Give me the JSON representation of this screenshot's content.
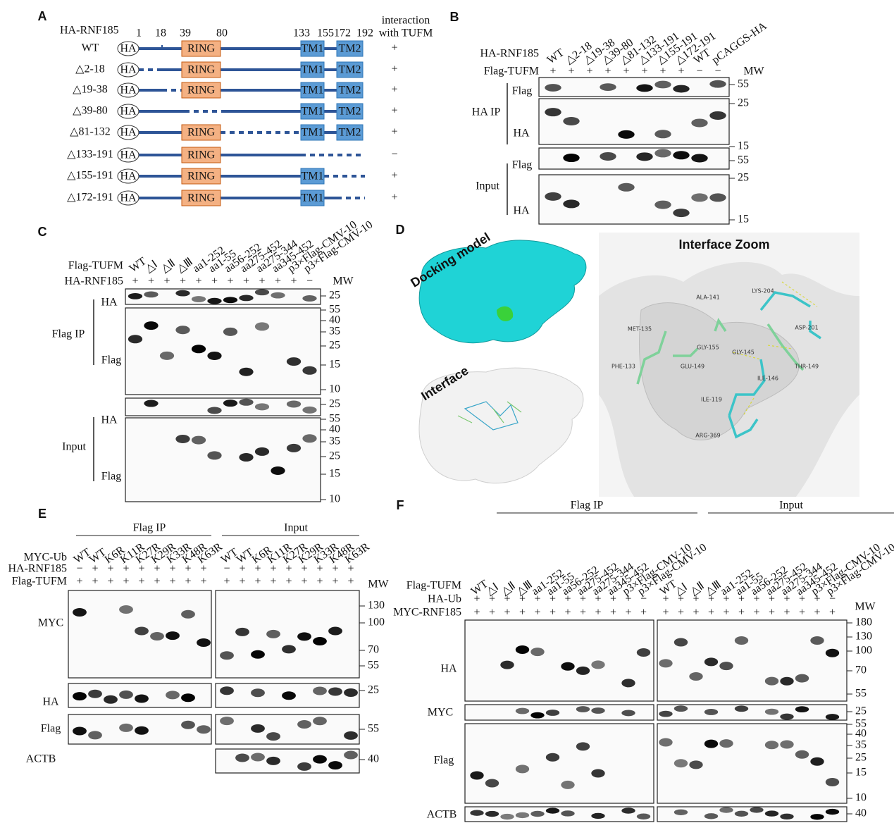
{
  "panel_a": {
    "label": "A",
    "construct": "HA-RNF185",
    "header": [
      "interaction",
      "with TUFM"
    ],
    "positions": [
      1,
      18,
      39,
      80,
      133,
      155,
      172,
      192
    ],
    "tag": "HA",
    "ring": "RING",
    "tm1": "TM1",
    "tm2": "TM2",
    "rows": [
      {
        "name": "WT",
        "result": "+"
      },
      {
        "name": "△2-18",
        "result": "+"
      },
      {
        "name": "△19-38",
        "result": "+"
      },
      {
        "name": "△39-80",
        "result": "+"
      },
      {
        "name": "△81-132",
        "result": "+"
      },
      {
        "name": "△133-191",
        "result": "−"
      },
      {
        "name": "△155-191",
        "result": "+"
      },
      {
        "name": "△172-191",
        "result": "+"
      }
    ]
  },
  "panel_b": {
    "label": "B",
    "row_names": [
      "HA-RNF185",
      "Flag-TUFM"
    ],
    "mw_title": "MW",
    "sides": [
      {
        "lanes": [
          "WT",
          "△2-18",
          "△19-38",
          "△39-80",
          "△81-132",
          "△133-191",
          "△155-191",
          "△172-191",
          "WT",
          "pCAGGS-HA"
        ],
        "signs": [
          [
            "+",
            "+",
            "+",
            "+",
            "+",
            "+",
            "+",
            "+",
            "−",
            "−"
          ]
        ]
      }
    ],
    "groups": [
      "HA IP",
      "Input"
    ],
    "blot_labels": [
      "Flag",
      "HA",
      "Flag",
      "HA"
    ],
    "mw": [
      55,
      25,
      15,
      55,
      25,
      15
    ]
  },
  "panel_c": {
    "label": "C",
    "row_names": [
      "Flag-TUFM",
      "HA-RNF185"
    ],
    "mw_title": "MW",
    "sides": [
      {
        "lanes": [
          "WT",
          "△Ⅰ",
          "△Ⅱ",
          "△Ⅲ",
          "aa1-252",
          "aa1-55",
          "aa56-252",
          "aa275-452",
          "aa275-344",
          "aa345-452",
          "p3×Flag-CMV-10",
          "p3×Flag-CMV-10"
        ],
        "signs": [
          [
            "+",
            "+",
            "+",
            "+",
            "+",
            "+",
            "+",
            "+",
            "+",
            "+",
            "+",
            "−"
          ]
        ]
      }
    ],
    "groups": [
      "Flag IP",
      "Input"
    ],
    "blot_labels": [
      "HA",
      "Flag",
      "HA",
      "Flag"
    ],
    "mw": [
      25,
      55,
      40,
      35,
      25,
      15,
      10,
      25,
      55,
      40,
      35,
      25,
      15,
      10
    ]
  },
  "panel_d": {
    "label": "D",
    "docking": "Docking model",
    "interface": "Interface",
    "zoom": "Interface Zoom",
    "residues": [
      "MET-135",
      "ALA-141",
      "GLY-155",
      "GLY-145",
      "PHE-133",
      "GLU-149",
      "ILE-146",
      "ILE-119",
      "ARG-369",
      "LYS-204",
      "ASP-201",
      "THR-149"
    ]
  },
  "panel_e": {
    "label": "E",
    "row_names": [
      "MYC-Ub",
      "HA-RNF185",
      "Flag-TUFM"
    ],
    "mw_title": "MW",
    "sides": [
      {
        "lanes": [
          "WT",
          "WT",
          "K6R",
          "K11R",
          "K27R",
          "K29R",
          "K33R",
          "K48R",
          "K63R"
        ],
        "signs": [
          [
            "−",
            "+",
            "+",
            "+",
            "+",
            "+",
            "+",
            "+",
            "+"
          ],
          [
            "+",
            "+",
            "+",
            "+",
            "+",
            "+",
            "+",
            "+",
            "+"
          ]
        ]
      },
      {
        "lanes": [
          "WT",
          "WT",
          "K6R",
          "K11R",
          "K27R",
          "K29R",
          "K33R",
          "K48R",
          "K63R"
        ],
        "signs": [
          [
            "−",
            "+",
            "+",
            "+",
            "+",
            "+",
            "+",
            "+",
            "+"
          ],
          [
            "+",
            "+",
            "+",
            "+",
            "+",
            "+",
            "+",
            "+",
            "+"
          ]
        ]
      }
    ],
    "groups": [
      "Flag IP",
      "Input"
    ],
    "blot_labels": [
      "MYC",
      "HA",
      "Flag",
      "ACTB"
    ],
    "mw": [
      130,
      100,
      70,
      55,
      25,
      55,
      40
    ]
  },
  "panel_f": {
    "label": "F",
    "row_names": [
      "Flag-TUFM",
      "HA-Ub",
      "MYC-RNF185"
    ],
    "mw_title": "MW",
    "sides": [
      {
        "lanes": [
          "WT",
          "△Ⅰ",
          "△Ⅱ",
          "△Ⅲ",
          "aa1-252",
          "aa1-55",
          "aa56-252",
          "aa275-452",
          "aa275-344",
          "aa345-452",
          "p3×Flag-CMV-10",
          "p3×Flag-CMV-10"
        ],
        "signs": [
          [
            "+",
            "+",
            "+",
            "+",
            "+",
            "+",
            "+",
            "+",
            "+",
            "+",
            "+",
            "−"
          ],
          [
            "+",
            "+",
            "+",
            "+",
            "+",
            "+",
            "+",
            "+",
            "+",
            "+",
            "+",
            "+"
          ]
        ]
      },
      {
        "lanes": [
          "WT",
          "△Ⅰ",
          "△Ⅱ",
          "△Ⅲ",
          "aa1-252",
          "aa1-55",
          "aa56-252",
          "aa275-452",
          "aa275-344",
          "aa345-452",
          "p3×Flag-CMV-10",
          "p3×Flag-CMV-10"
        ],
        "signs": [
          [
            "+",
            "+",
            "+",
            "+",
            "+",
            "+",
            "+",
            "+",
            "+",
            "+",
            "+",
            "−"
          ],
          [
            "+",
            "+",
            "+",
            "+",
            "+",
            "+",
            "+",
            "+",
            "+",
            "+",
            "+",
            "+"
          ]
        ]
      }
    ],
    "groups": [
      "Flag IP",
      "Input"
    ],
    "blot_labels": [
      "HA",
      "MYC",
      "Flag",
      "ACTB"
    ],
    "mw": [
      180,
      130,
      100,
      70,
      55,
      25,
      55,
      40,
      35,
      25,
      15,
      10,
      40
    ]
  }
}
